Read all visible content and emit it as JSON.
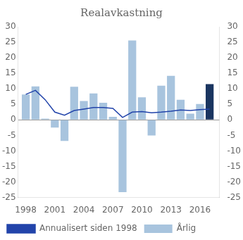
{
  "chart_data": {
    "type": "bar",
    "title": "Realavkastning",
    "x": [
      1998,
      1999,
      2000,
      2001,
      2002,
      2003,
      2004,
      2005,
      2006,
      2007,
      2008,
      2009,
      2010,
      2011,
      2012,
      2013,
      2014,
      2015,
      2016,
      2017
    ],
    "series": [
      {
        "name": "Årlig",
        "type": "bar",
        "values": [
          8.2,
          10.8,
          0.4,
          -2.5,
          -6.8,
          10.7,
          6.1,
          8.5,
          5.5,
          1.0,
          -23.3,
          25.6,
          7.3,
          -5.0,
          11.0,
          14.2,
          6.5,
          2.0,
          5.1,
          11.5
        ],
        "colors": [
          "#a8c4de",
          "#a8c4de",
          "#a8c4de",
          "#a8c4de",
          "#a8c4de",
          "#a8c4de",
          "#a8c4de",
          "#a8c4de",
          "#a8c4de",
          "#a8c4de",
          "#a8c4de",
          "#a8c4de",
          "#a8c4de",
          "#a8c4de",
          "#a8c4de",
          "#a8c4de",
          "#a8c4de",
          "#a8c4de",
          "#a8c4de",
          "#1a3560"
        ]
      },
      {
        "name": "Annualisert\nsiden 1998",
        "type": "line",
        "color": "#2244aa",
        "values": [
          8.2,
          9.5,
          6.5,
          2.5,
          1.5,
          3.0,
          3.5,
          4.0,
          4.0,
          3.7,
          0.8,
          2.5,
          2.7,
          2.3,
          2.5,
          2.8,
          3.2,
          3.0,
          3.3,
          3.5
        ]
      }
    ],
    "xlim": [
      1997.2,
      2018.0
    ],
    "xticks": [
      1998,
      2001,
      2004,
      2007,
      2010,
      2013,
      2016
    ],
    "ylim": [
      -25,
      30
    ],
    "yticks": [
      -25,
      -20,
      -15,
      -10,
      -5,
      0,
      5,
      10,
      15,
      20,
      25,
      30
    ],
    "y2lim": [
      -25,
      30
    ],
    "y2ticks": [
      -25,
      -20,
      -15,
      -10,
      -5,
      0,
      5,
      10,
      15,
      20,
      25,
      30
    ],
    "grid": false,
    "legend": "lower left"
  }
}
